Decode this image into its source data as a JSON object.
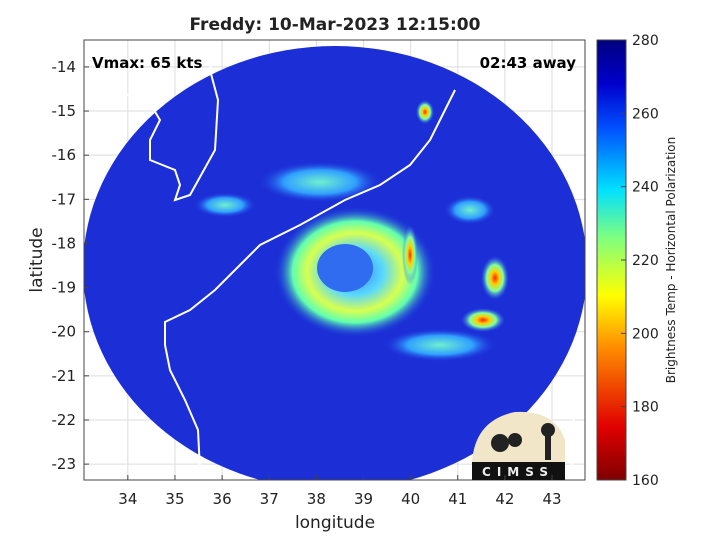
{
  "title": "Freddy: 10-Mar-2023 12:15:00",
  "annotations": {
    "vmax": "Vmax: 65 kts",
    "time_away": "02:43 away"
  },
  "axes": {
    "x_label": "longitude",
    "y_label": "latitude",
    "xlim": [
      33.07,
      43.7
    ],
    "ylim": [
      -23.36,
      -13.39
    ],
    "xticks": [
      34,
      35,
      36,
      37,
      38,
      39,
      40,
      41,
      42,
      43
    ],
    "yticks": [
      -14,
      -15,
      -16,
      -17,
      -18,
      -19,
      -20,
      -21,
      -22,
      -23
    ]
  },
  "colorbar": {
    "label": "Brightness Temp - Horizontal Polarization",
    "lim": [
      160,
      280
    ],
    "ticks": [
      160,
      180,
      200,
      220,
      240,
      260,
      280
    ]
  },
  "logo": "CIMSS"
}
